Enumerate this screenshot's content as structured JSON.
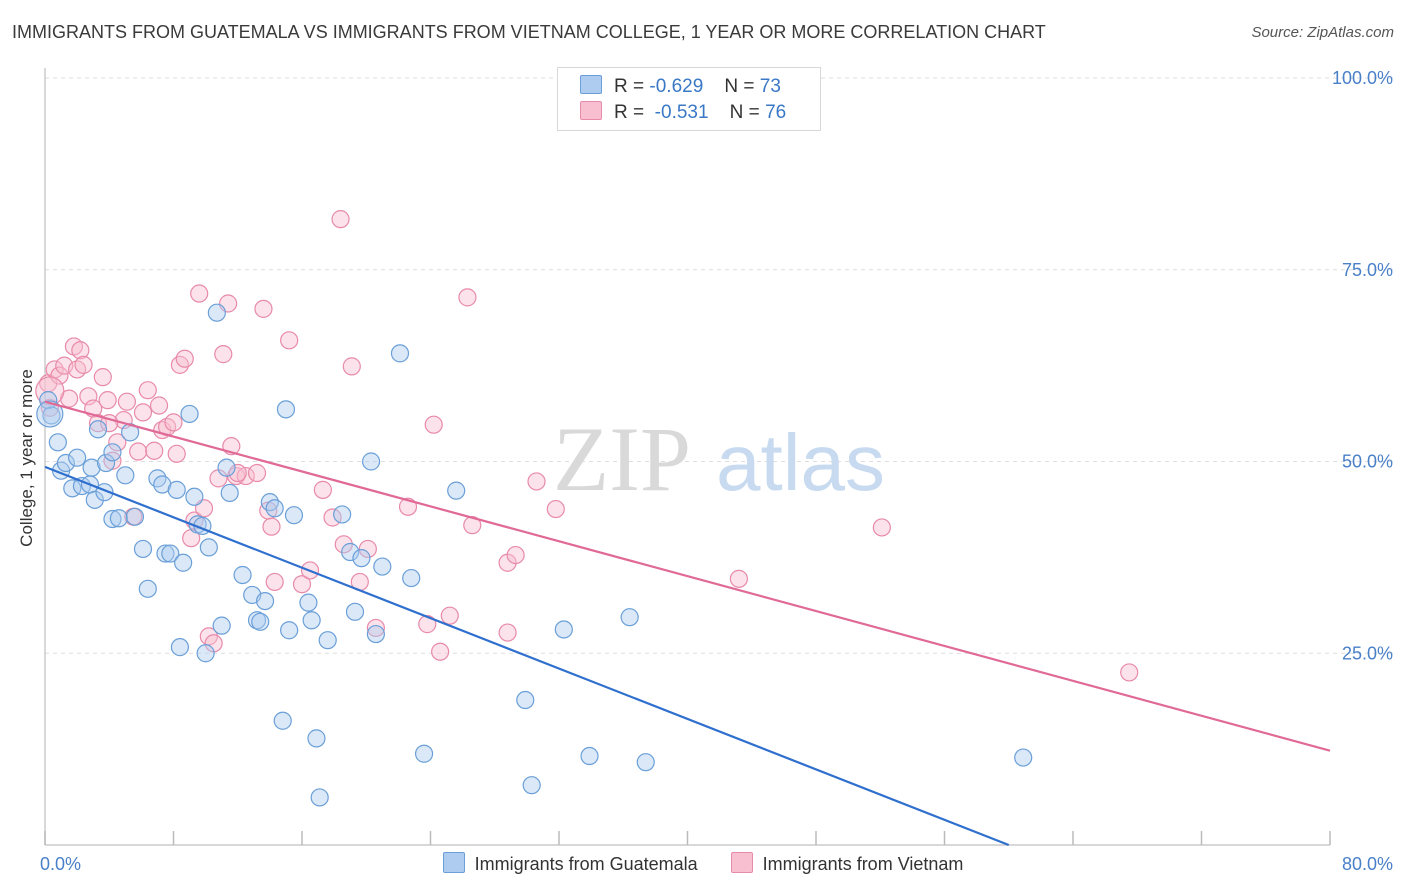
{
  "header": {
    "title": "IMMIGRANTS FROM GUATEMALA VS IMMIGRANTS FROM VIETNAM COLLEGE, 1 YEAR OR MORE CORRELATION CHART",
    "source": "Source: ZipAtlas.com"
  },
  "watermark": {
    "zip": "ZIP",
    "atlas": "atlas"
  },
  "legend": {
    "r_label": "R =",
    "n_label": "N =",
    "guatemala": {
      "r": "-0.629",
      "n": "73"
    },
    "vietnam": {
      "r": "-0.531",
      "n": "76"
    }
  },
  "colors": {
    "guatemala_fill": "#aecbf0",
    "guatemala_stroke": "#6a9fd8",
    "guatemala_line": "#2f6fce",
    "vietnam_fill": "#f8bfd1",
    "vietnam_stroke": "#e88aaa",
    "vietnam_line": "#e06a95",
    "tick_text": "#4a80c8",
    "grid": "#dddddd"
  },
  "chart_data": {
    "type": "scatter",
    "title": "IMMIGRANTS FROM GUATEMALA VS IMMIGRANTS FROM VIETNAM COLLEGE, 1 YEAR OR MORE CORRELATION CHART",
    "ylabel": "College, 1 year or more",
    "xlabel": "",
    "xlim": [
      0,
      80
    ],
    "ylim": [
      0,
      100
    ],
    "x_tick_labels": [
      "0.0%",
      "80.0%"
    ],
    "y_ticks": [
      25,
      50,
      75,
      100
    ],
    "y_tick_labels": [
      "25.0%",
      "50.0%",
      "75.0%",
      "100.0%"
    ],
    "grid": true,
    "legend_position": "top-center",
    "series": [
      {
        "name": "Immigrants from Guatemala",
        "trend": {
          "x": [
            0,
            60
          ],
          "y": [
            49.3,
            0
          ]
        },
        "points": [
          {
            "x": 0.2,
            "y": 58.0
          },
          {
            "x": 0.4,
            "y": 56.0
          },
          {
            "x": 0.8,
            "y": 52.5
          },
          {
            "x": 1.0,
            "y": 48.8
          },
          {
            "x": 1.3,
            "y": 49.8
          },
          {
            "x": 1.7,
            "y": 46.5
          },
          {
            "x": 2.0,
            "y": 50.5
          },
          {
            "x": 2.3,
            "y": 46.8
          },
          {
            "x": 2.8,
            "y": 47.0
          },
          {
            "x": 2.9,
            "y": 49.2
          },
          {
            "x": 3.1,
            "y": 45.0
          },
          {
            "x": 3.3,
            "y": 54.2
          },
          {
            "x": 3.8,
            "y": 49.8
          },
          {
            "x": 4.2,
            "y": 51.2
          },
          {
            "x": 4.2,
            "y": 42.5
          },
          {
            "x": 4.6,
            "y": 42.6
          },
          {
            "x": 5.0,
            "y": 48.2
          },
          {
            "x": 5.3,
            "y": 53.8
          },
          {
            "x": 5.6,
            "y": 42.8
          },
          {
            "x": 6.1,
            "y": 38.6
          },
          {
            "x": 6.4,
            "y": 33.4
          },
          {
            "x": 7.0,
            "y": 47.8
          },
          {
            "x": 7.3,
            "y": 47.0
          },
          {
            "x": 7.5,
            "y": 38.0
          },
          {
            "x": 7.8,
            "y": 38.0
          },
          {
            "x": 8.2,
            "y": 46.3
          },
          {
            "x": 8.4,
            "y": 25.8
          },
          {
            "x": 8.6,
            "y": 36.8
          },
          {
            "x": 9.0,
            "y": 56.2
          },
          {
            "x": 9.3,
            "y": 45.4
          },
          {
            "x": 9.5,
            "y": 41.8
          },
          {
            "x": 9.8,
            "y": 41.6
          },
          {
            "x": 10.0,
            "y": 25.0
          },
          {
            "x": 10.2,
            "y": 38.8
          },
          {
            "x": 10.7,
            "y": 69.4
          },
          {
            "x": 11.0,
            "y": 28.6
          },
          {
            "x": 11.3,
            "y": 49.2
          },
          {
            "x": 11.5,
            "y": 45.9
          },
          {
            "x": 12.3,
            "y": 35.2
          },
          {
            "x": 12.9,
            "y": 32.6
          },
          {
            "x": 13.2,
            "y": 29.3
          },
          {
            "x": 13.4,
            "y": 29.1
          },
          {
            "x": 13.7,
            "y": 31.8
          },
          {
            "x": 14.0,
            "y": 44.7
          },
          {
            "x": 14.3,
            "y": 43.9
          },
          {
            "x": 14.8,
            "y": 16.2
          },
          {
            "x": 15.0,
            "y": 56.8
          },
          {
            "x": 15.2,
            "y": 28.0
          },
          {
            "x": 15.5,
            "y": 43.0
          },
          {
            "x": 16.4,
            "y": 31.6
          },
          {
            "x": 16.6,
            "y": 29.3
          },
          {
            "x": 16.9,
            "y": 13.9
          },
          {
            "x": 17.1,
            "y": 6.2
          },
          {
            "x": 17.6,
            "y": 26.7
          },
          {
            "x": 18.5,
            "y": 43.1
          },
          {
            "x": 19.0,
            "y": 38.2
          },
          {
            "x": 19.3,
            "y": 30.4
          },
          {
            "x": 19.7,
            "y": 37.4
          },
          {
            "x": 20.3,
            "y": 50.0
          },
          {
            "x": 20.6,
            "y": 27.5
          },
          {
            "x": 21.0,
            "y": 36.3
          },
          {
            "x": 22.1,
            "y": 64.1
          },
          {
            "x": 22.8,
            "y": 34.8
          },
          {
            "x": 23.6,
            "y": 11.9
          },
          {
            "x": 25.6,
            "y": 46.2
          },
          {
            "x": 29.9,
            "y": 18.9
          },
          {
            "x": 30.3,
            "y": 7.8
          },
          {
            "x": 32.3,
            "y": 28.1
          },
          {
            "x": 33.9,
            "y": 11.6
          },
          {
            "x": 36.4,
            "y": 29.7
          },
          {
            "x": 37.4,
            "y": 10.8
          },
          {
            "x": 60.9,
            "y": 11.4
          },
          {
            "x": 3.7,
            "y": 46.0
          }
        ]
      },
      {
        "name": "Immigrants from Vietnam",
        "trend": {
          "x": [
            0,
            80
          ],
          "y": [
            57.8,
            12.3
          ]
        },
        "points": [
          {
            "x": 0.2,
            "y": 60.2
          },
          {
            "x": 0.3,
            "y": 57.0
          },
          {
            "x": 0.6,
            "y": 62.0
          },
          {
            "x": 0.9,
            "y": 61.2
          },
          {
            "x": 1.2,
            "y": 62.5
          },
          {
            "x": 1.5,
            "y": 58.2
          },
          {
            "x": 1.8,
            "y": 65.0
          },
          {
            "x": 2.0,
            "y": 62.0
          },
          {
            "x": 2.2,
            "y": 64.5
          },
          {
            "x": 2.4,
            "y": 62.6
          },
          {
            "x": 2.7,
            "y": 58.5
          },
          {
            "x": 3.0,
            "y": 56.9
          },
          {
            "x": 3.3,
            "y": 55.0
          },
          {
            "x": 3.6,
            "y": 61.0
          },
          {
            "x": 3.9,
            "y": 58.0
          },
          {
            "x": 4.2,
            "y": 50.1
          },
          {
            "x": 4.5,
            "y": 52.5
          },
          {
            "x": 4.9,
            "y": 55.4
          },
          {
            "x": 5.1,
            "y": 57.8
          },
          {
            "x": 5.5,
            "y": 42.8
          },
          {
            "x": 5.8,
            "y": 51.3
          },
          {
            "x": 6.1,
            "y": 56.4
          },
          {
            "x": 6.4,
            "y": 59.3
          },
          {
            "x": 6.8,
            "y": 51.4
          },
          {
            "x": 7.1,
            "y": 57.3
          },
          {
            "x": 7.3,
            "y": 54.1
          },
          {
            "x": 7.6,
            "y": 54.5
          },
          {
            "x": 8.0,
            "y": 55.1
          },
          {
            "x": 8.2,
            "y": 51.0
          },
          {
            "x": 8.4,
            "y": 62.6
          },
          {
            "x": 8.7,
            "y": 63.4
          },
          {
            "x": 9.1,
            "y": 40.0
          },
          {
            "x": 9.3,
            "y": 42.3
          },
          {
            "x": 9.6,
            "y": 71.9
          },
          {
            "x": 9.9,
            "y": 43.9
          },
          {
            "x": 10.2,
            "y": 27.2
          },
          {
            "x": 10.5,
            "y": 26.3
          },
          {
            "x": 10.8,
            "y": 47.8
          },
          {
            "x": 11.1,
            "y": 64.0
          },
          {
            "x": 11.4,
            "y": 70.6
          },
          {
            "x": 11.6,
            "y": 52.0
          },
          {
            "x": 11.9,
            "y": 48.1
          },
          {
            "x": 12.5,
            "y": 48.1
          },
          {
            "x": 13.2,
            "y": 48.5
          },
          {
            "x": 13.6,
            "y": 69.9
          },
          {
            "x": 13.9,
            "y": 43.6
          },
          {
            "x": 14.1,
            "y": 41.5
          },
          {
            "x": 14.3,
            "y": 34.3
          },
          {
            "x": 15.2,
            "y": 65.8
          },
          {
            "x": 16.0,
            "y": 34.0
          },
          {
            "x": 16.5,
            "y": 35.8
          },
          {
            "x": 17.3,
            "y": 46.3
          },
          {
            "x": 17.9,
            "y": 42.7
          },
          {
            "x": 18.4,
            "y": 81.6
          },
          {
            "x": 18.6,
            "y": 39.2
          },
          {
            "x": 19.1,
            "y": 62.4
          },
          {
            "x": 19.6,
            "y": 34.3
          },
          {
            "x": 20.1,
            "y": 38.6
          },
          {
            "x": 20.6,
            "y": 28.3
          },
          {
            "x": 22.6,
            "y": 44.1
          },
          {
            "x": 23.8,
            "y": 28.8
          },
          {
            "x": 24.2,
            "y": 54.8
          },
          {
            "x": 24.6,
            "y": 25.2
          },
          {
            "x": 25.2,
            "y": 29.9
          },
          {
            "x": 26.3,
            "y": 71.4
          },
          {
            "x": 26.6,
            "y": 41.7
          },
          {
            "x": 28.8,
            "y": 27.7
          },
          {
            "x": 28.8,
            "y": 36.8
          },
          {
            "x": 29.3,
            "y": 37.8
          },
          {
            "x": 30.6,
            "y": 47.4
          },
          {
            "x": 31.8,
            "y": 43.8
          },
          {
            "x": 43.2,
            "y": 34.7
          },
          {
            "x": 52.1,
            "y": 41.4
          },
          {
            "x": 67.5,
            "y": 22.5
          },
          {
            "x": 4.0,
            "y": 55.0
          },
          {
            "x": 12.0,
            "y": 48.5
          }
        ]
      }
    ]
  },
  "bottom_legend": {
    "guatemala": "Immigrants from Guatemala",
    "vietnam": "Immigrants from Vietnam"
  }
}
